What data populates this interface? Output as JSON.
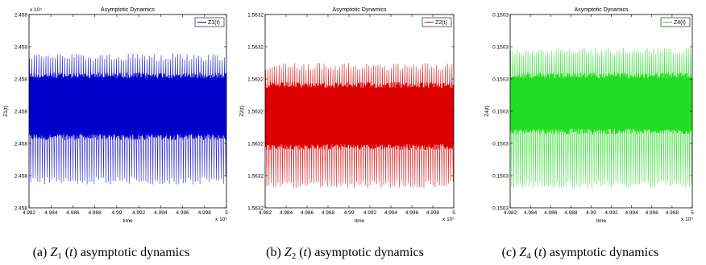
{
  "chart_data": [
    {
      "type": "line",
      "title": "Asymptotic Dynamics",
      "xlabel": "time",
      "ylabel": "Z1(t)",
      "y_multiplier": "x 10⁴",
      "x_multiplier": "x 10⁵",
      "xlim": [
        4.982,
        5.0
      ],
      "x_ticks": [
        "4.982",
        "4.984",
        "4.986",
        "4.988",
        "4.99",
        "4.992",
        "4.994",
        "4.996",
        "4.998",
        "5"
      ],
      "y_ticks": [
        "2.458",
        "2.458",
        "2.458",
        "2.458",
        "2.458",
        "2.458",
        "2.458"
      ],
      "legend": "top-right",
      "grid": false,
      "series": [
        {
          "name": "Z1(t)",
          "color": "#0000cc",
          "period": 0.000215,
          "core_band": [
            0.35,
            0.7
          ],
          "outer_band": [
            0.12,
            0.8
          ]
        }
      ],
      "caption_prefix": "(a)",
      "caption_var": "Z",
      "caption_sub": "1",
      "caption_rest": "(t) asymptotic dynamics"
    },
    {
      "type": "line",
      "title": "Asymptotic Dynamics",
      "xlabel": "time",
      "ylabel": "Z2(t)",
      "x_multiplier": "x 10⁵",
      "xlim": [
        4.982,
        5.0
      ],
      "x_ticks": [
        "4.982",
        "4.984",
        "4.986",
        "4.988",
        "4.99",
        "4.992",
        "4.994",
        "4.996",
        "4.998",
        "5"
      ],
      "y_ticks": [
        "1.5632",
        "1.5632",
        "1.5632",
        "1.5632",
        "1.5632",
        "1.5632",
        "1.5632"
      ],
      "legend": "top-right",
      "grid": false,
      "series": [
        {
          "name": "Z2(t)",
          "color": "#dd0000",
          "period": 0.000215,
          "core_band": [
            0.3,
            0.65
          ],
          "outer_band": [
            0.1,
            0.75
          ]
        }
      ],
      "caption_prefix": "(b)",
      "caption_var": "Z",
      "caption_sub": "2",
      "caption_rest": "(t) asymptotic dynamics"
    },
    {
      "type": "line",
      "title": "Asymptotic Dynamics",
      "xlabel": "time",
      "ylabel": "Z4(t)",
      "x_multiplier": "x 10⁵",
      "xlim": [
        4.982,
        5.0
      ],
      "x_ticks": [
        "4.982",
        "4.984",
        "4.986",
        "4.988",
        "4.99",
        "4.992",
        "4.994",
        "4.996",
        "4.998",
        "5"
      ],
      "y_ticks": [
        "0.1503",
        "0.1503",
        "0.1503",
        "0.1503",
        "0.1503",
        "0.1503",
        "0.1503"
      ],
      "legend": "top-right",
      "grid": false,
      "series": [
        {
          "name": "Z4(t)",
          "color": "#22dd22",
          "period": 0.000215,
          "core_band": [
            0.38,
            0.7
          ],
          "outer_band": [
            0.1,
            0.83
          ]
        }
      ],
      "caption_prefix": "(c)",
      "caption_var": "Z",
      "caption_sub": "4",
      "caption_rest": "(t) asymptotic dynamics"
    }
  ]
}
